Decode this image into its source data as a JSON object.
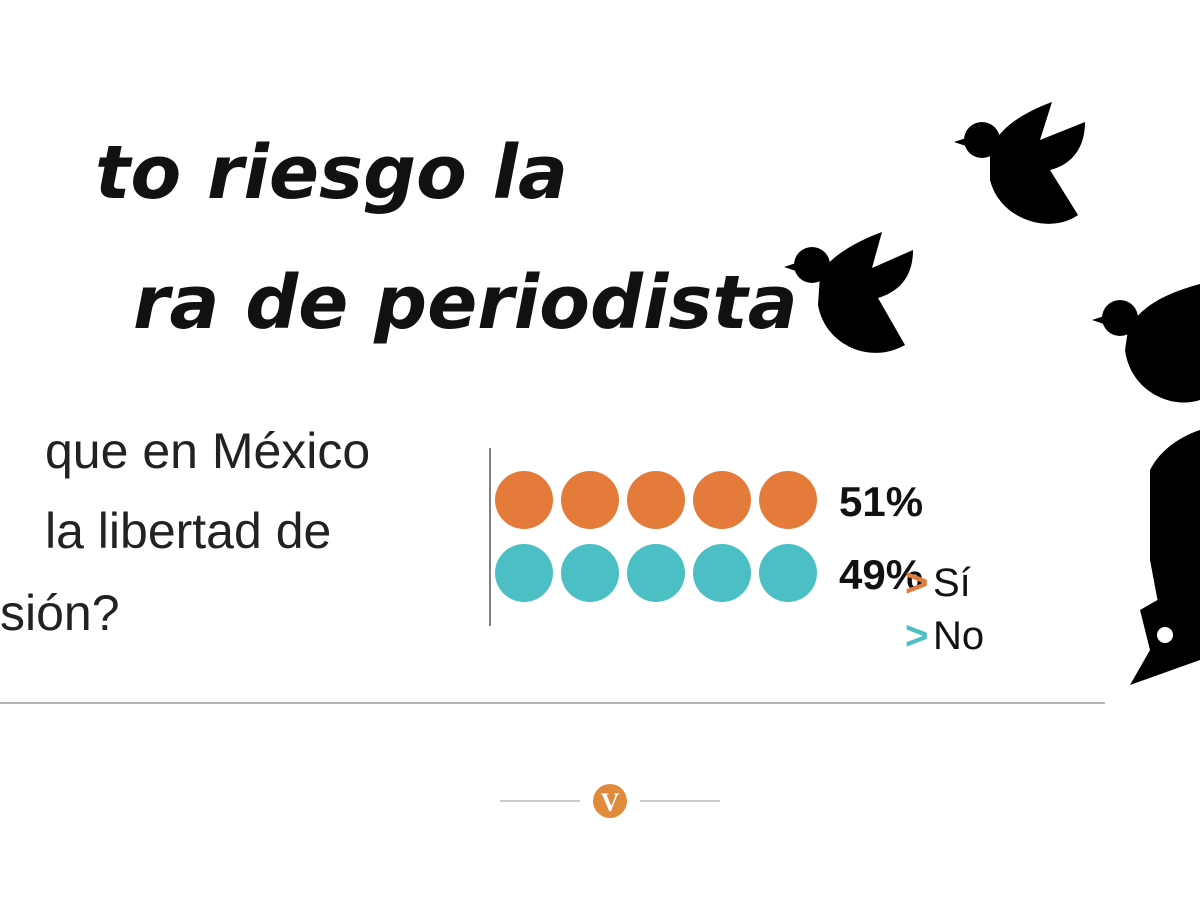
{
  "chart_data": {
    "type": "pictogram",
    "title": [
      "to riesgo la",
      "ra de periodista"
    ],
    "question": [
      "que en México",
      "la libertad de",
      "sión?"
    ],
    "categories": [
      "Sí",
      "No"
    ],
    "values": [
      51,
      49
    ],
    "value_labels": [
      "51%",
      "49%"
    ],
    "colors": [
      "#e57b3a",
      "#4bbfc4"
    ],
    "legend_marker": ">",
    "logo": "V"
  }
}
